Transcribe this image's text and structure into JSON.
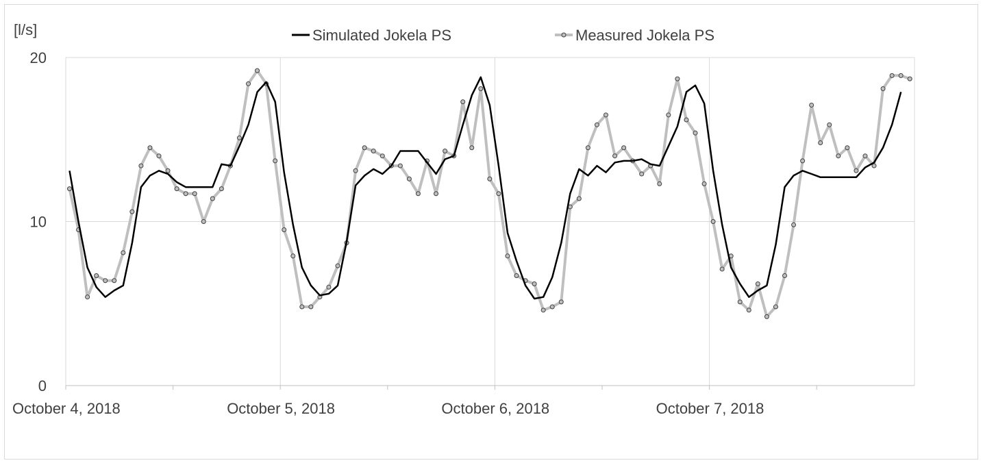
{
  "chart_data": {
    "type": "line",
    "title": "",
    "xlabel": "",
    "ylabel": "[l/s]",
    "ylim": [
      0,
      20
    ],
    "y_ticks": [
      0,
      10,
      20
    ],
    "x_start": "October 4, 2018 00:00",
    "x_step_hours": 1,
    "x_tick_labels": [
      "October 4, 2018",
      "October 5, 2018",
      "October 6, 2018",
      "October 7, 2018"
    ],
    "grid": true,
    "legend_position": "top",
    "series": [
      {
        "name": "Simulated Jokela PS",
        "color": "#000000",
        "marker": false,
        "values": [
          13.1,
          10.0,
          7.2,
          6.0,
          5.4,
          5.8,
          6.1,
          8.7,
          12.1,
          12.8,
          13.1,
          12.9,
          12.4,
          12.1,
          12.1,
          12.1,
          12.1,
          13.5,
          13.4,
          14.6,
          15.9,
          17.9,
          18.5,
          17.3,
          13.0,
          9.8,
          7.2,
          6.1,
          5.5,
          5.6,
          6.1,
          8.8,
          12.2,
          12.8,
          13.2,
          12.9,
          13.4,
          14.3,
          14.3,
          14.3,
          13.6,
          12.9,
          13.8,
          14.0,
          15.9,
          17.7,
          18.8,
          17.1,
          13.4,
          9.3,
          7.6,
          6.1,
          5.3,
          5.4,
          6.6,
          8.7,
          11.7,
          13.2,
          12.8,
          13.4,
          13.0,
          13.6,
          13.7,
          13.7,
          13.8,
          13.5,
          13.4,
          14.6,
          15.8,
          17.9,
          18.3,
          17.2,
          13.1,
          9.8,
          7.2,
          6.2,
          5.4,
          5.8,
          6.1,
          8.6,
          12.1,
          12.8,
          13.1,
          12.9,
          12.7,
          12.7,
          12.7,
          12.7,
          12.7,
          13.3,
          13.6,
          14.5,
          15.9,
          17.9
        ]
      },
      {
        "name": "Measured Jokela PS",
        "color": "#bfbfbf",
        "marker": true,
        "values": [
          12.0,
          9.5,
          5.4,
          6.7,
          6.4,
          6.4,
          8.1,
          10.6,
          13.4,
          14.5,
          14.0,
          13.1,
          12.0,
          11.7,
          11.7,
          10.0,
          11.4,
          12.0,
          13.4,
          15.1,
          18.4,
          19.2,
          18.4,
          13.7,
          9.5,
          7.9,
          4.8,
          4.8,
          5.4,
          6.0,
          7.3,
          8.7,
          13.1,
          14.5,
          14.3,
          14.0,
          13.4,
          13.4,
          12.6,
          11.7,
          13.7,
          11.7,
          14.3,
          14.0,
          17.3,
          14.5,
          18.1,
          12.6,
          11.7,
          7.9,
          6.7,
          6.4,
          6.2,
          4.6,
          4.8,
          5.1,
          10.9,
          11.4,
          14.5,
          15.9,
          16.5,
          14.0,
          14.5,
          13.7,
          12.9,
          13.4,
          12.3,
          16.5,
          18.7,
          16.2,
          15.4,
          12.3,
          10.0,
          7.1,
          7.9,
          5.1,
          4.6,
          6.2,
          4.2,
          4.8,
          6.7,
          9.8,
          13.7,
          17.1,
          14.8,
          15.9,
          14.0,
          14.5,
          13.1,
          14.0,
          13.4,
          18.1,
          18.9,
          18.9,
          18.7
        ]
      }
    ]
  }
}
